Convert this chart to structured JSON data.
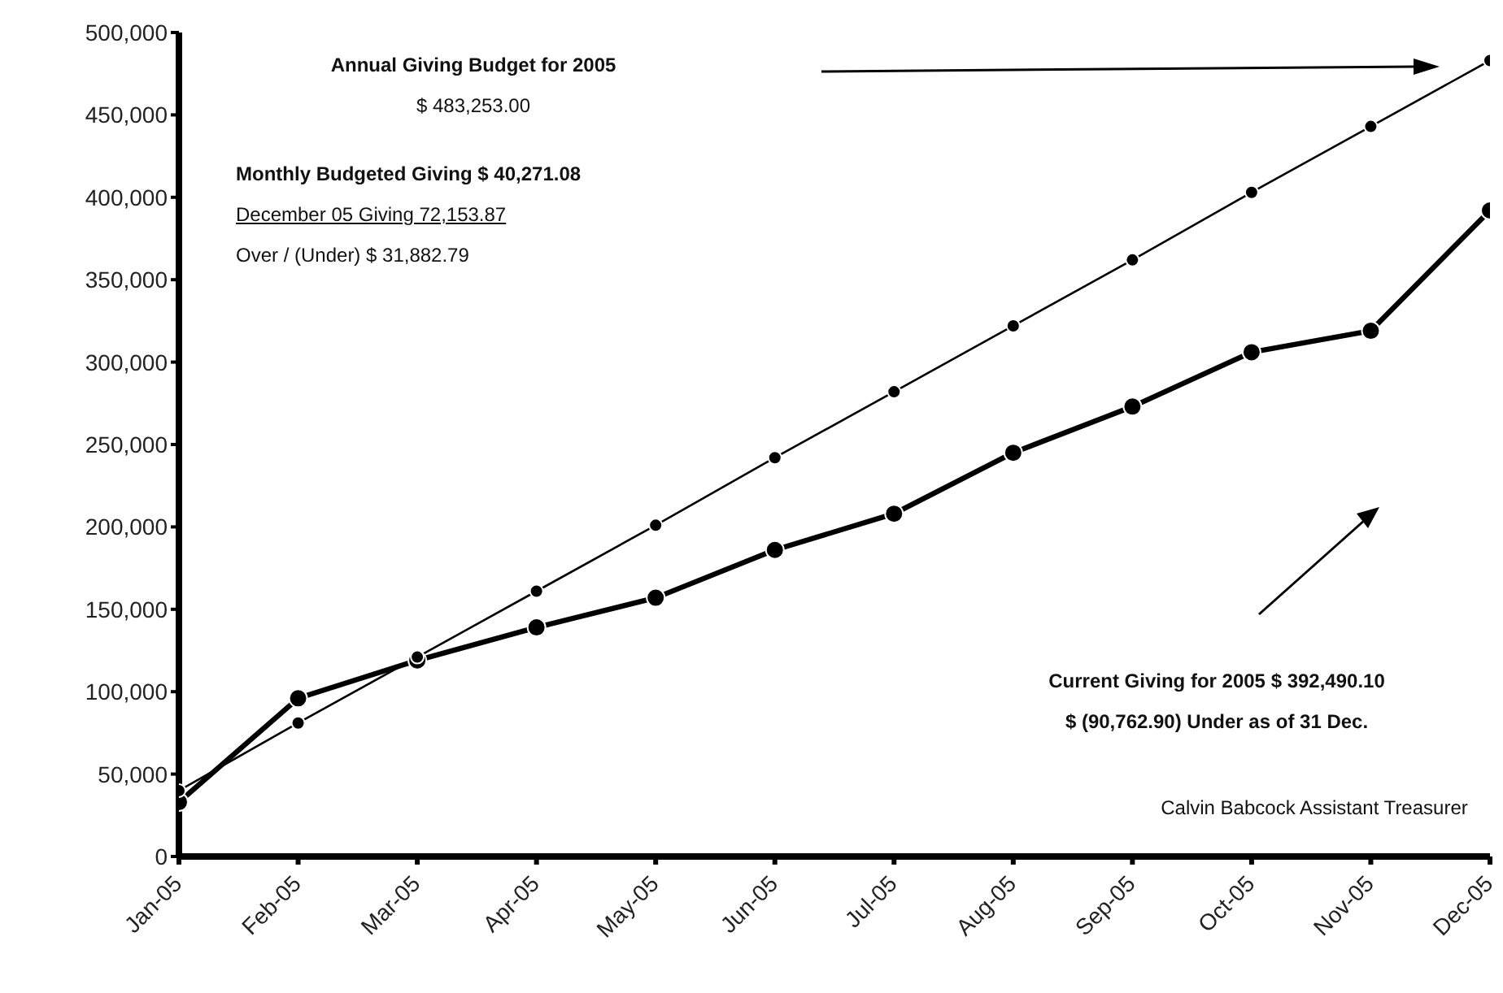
{
  "chart_data": {
    "type": "line",
    "categories": [
      "Jan-05",
      "Feb-05",
      "Mar-05",
      "Apr-05",
      "May-05",
      "Jun-05",
      "Jul-05",
      "Aug-05",
      "Sep-05",
      "Oct-05",
      "Nov-05",
      "Dec-05"
    ],
    "series": [
      {
        "color": "#000000",
        "values": [
          40000,
          81000,
          121000,
          161000,
          201000,
          242000,
          282000,
          322000,
          362000,
          403000,
          443000,
          483000
        ]
      },
      {
        "color": "#000000",
        "values": [
          33000,
          96000,
          119000,
          139000,
          157000,
          186000,
          208000,
          245000,
          273000,
          306000,
          319000,
          392000
        ]
      }
    ],
    "ylim": [
      0,
      500000
    ],
    "yticks": [
      {
        "value": 0,
        "label": "0"
      },
      {
        "value": 50000,
        "label": "50,000"
      },
      {
        "value": 100000,
        "label": "100,000"
      },
      {
        "value": 150000,
        "label": "150,000"
      },
      {
        "value": 200000,
        "label": "200,000"
      },
      {
        "value": 250000,
        "label": "250,000"
      },
      {
        "value": 300000,
        "label": "300,000"
      },
      {
        "value": 350000,
        "label": "350,000"
      },
      {
        "value": 400000,
        "label": "400,000"
      },
      {
        "value": 450000,
        "label": "450,000"
      },
      {
        "value": 500000,
        "label": "500,000"
      }
    ],
    "grid": false,
    "legend": false,
    "marker": "circle",
    "line_style": "solid",
    "annotations": [
      "Annual Giving Budget for 2005",
      "$ 483,253.00",
      "Monthly Budgeted Giving $ 40,271.08",
      "December 05 Giving 72,153.87",
      "Over / (Under) $ 31,882.79",
      "Current Giving for 2005 $ 392,490.10",
      "$ (90,762.90) Under as of 31 Dec.",
      "Calvin Babcock Assistant Treasurer"
    ]
  }
}
